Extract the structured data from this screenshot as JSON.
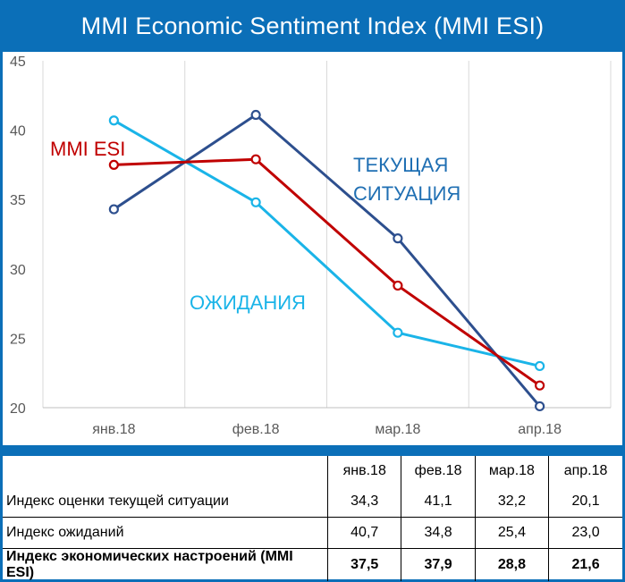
{
  "title": "MMI Economic Sentiment Index (MMI ESI)",
  "colors": {
    "header_bg": "#0b6fb8",
    "current": "#2d4f8e",
    "expectations": "#1ab4e8",
    "esi": "#c00000"
  },
  "chart_data": {
    "type": "line",
    "title": "MMI Economic Sentiment Index (MMI ESI)",
    "categories": [
      "янв.18",
      "фев.18",
      "мар.18",
      "апр.18"
    ],
    "ylim": [
      20,
      45
    ],
    "yticks": [
      20,
      25,
      30,
      35,
      40,
      45
    ],
    "ytick_labels": [
      "20",
      "25",
      "30",
      "35",
      "40",
      "45"
    ],
    "grid": "vertical",
    "series": [
      {
        "name": "ТЕКУЩАЯ СИТУАЦИЯ",
        "values": [
          34.3,
          41.1,
          32.2,
          20.1
        ],
        "color": "#2d4f8e"
      },
      {
        "name": "ОЖИДАНИЯ",
        "values": [
          40.7,
          34.8,
          25.4,
          23.0
        ],
        "color": "#1ab4e8"
      },
      {
        "name": "MMI ESI",
        "values": [
          37.5,
          37.9,
          28.8,
          21.6
        ],
        "color": "#c00000"
      }
    ],
    "labels": {
      "current_line1": "ТЕКУЩАЯ",
      "current_line2": "СИТУАЦИЯ",
      "expectations": "ОЖИДАНИЯ",
      "esi": "MMI ESI"
    }
  },
  "table": {
    "header": [
      "янв.18",
      "фев.18",
      "мар.18",
      "апр.18"
    ],
    "rows": [
      {
        "label": "Индекс оценки текущей ситуации",
        "values": [
          "34,3",
          "41,1",
          "32,2",
          "20,1"
        ]
      },
      {
        "label": "Индекс ожиданий",
        "values": [
          "40,7",
          "34,8",
          "25,4",
          "23,0"
        ]
      },
      {
        "label": "Индекс экономических настроений (MMI ESI)",
        "values": [
          "37,5",
          "37,9",
          "28,8",
          "21,6"
        ]
      }
    ]
  }
}
